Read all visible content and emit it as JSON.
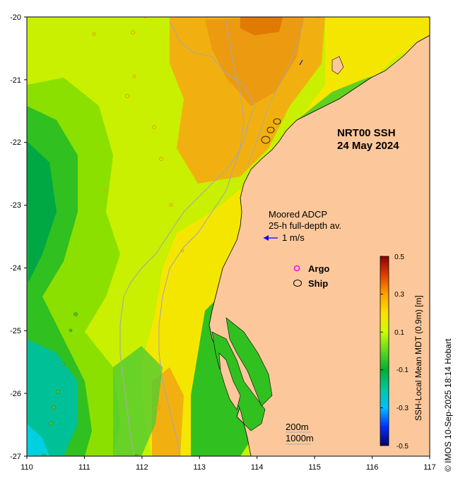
{
  "map": {
    "title_line1": "NRT00 SSH",
    "title_line2": "24 May 2024",
    "adcp_line1": "Moored ADCP",
    "adcp_line2": "25-h full-depth av.",
    "adcp_scale": "1 m/s",
    "legend_argo": "Argo",
    "legend_ship": "Ship",
    "contour_200": "200m",
    "contour_1000": "1000m",
    "credit": "© IMOS 10-Sep-2025 18:14 Hobart",
    "colors": {
      "land": "#fcc89b",
      "isobath": "#a8a8a8",
      "argo": "#ff00ff",
      "adcp_arrow": "#0000ff"
    }
  },
  "axes": {
    "x_ticks": [
      "110",
      "111",
      "112",
      "113",
      "114",
      "115",
      "116",
      "117"
    ],
    "y_ticks": [
      "-20",
      "-21",
      "-22",
      "-23",
      "-24",
      "-25",
      "-26",
      "-27"
    ],
    "x_range": [
      110,
      117
    ],
    "y_range": [
      -27,
      -20
    ]
  },
  "colorbar": {
    "label": "SSH-Local Mean MDT (0.9m) [m]",
    "ticks": [
      "0.5",
      "0.3",
      "0.1",
      "-0.1",
      "-0.3",
      "-0.5"
    ],
    "range": [
      -0.5,
      0.5
    ]
  }
}
